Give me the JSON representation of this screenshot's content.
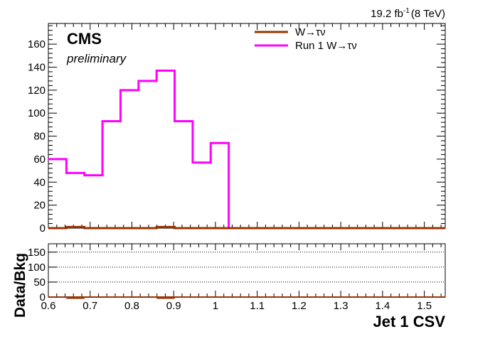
{
  "header": {
    "lumi_value": "19.2 fb",
    "lumi_exponent": "-1",
    "energy": "(8 TeV)"
  },
  "labels": {
    "experiment": "CMS",
    "status": "preliminary",
    "xlabel": "Jet 1 CSV",
    "ratio_ylabel": "Data/Bkg"
  },
  "colors": {
    "run1": "#ff00ff",
    "wtau": "#993300",
    "frame": "#000000",
    "grid": "#000000"
  },
  "chart_data": [
    {
      "type": "line",
      "panel": "main",
      "xlim": [
        0.6,
        1.55
      ],
      "ylim": [
        0,
        178
      ],
      "yticks": [
        0,
        20,
        40,
        60,
        80,
        100,
        120,
        140,
        160
      ],
      "xticks": [
        0.6,
        0.7,
        0.8,
        0.9,
        1,
        1.1,
        1.2,
        1.3,
        1.4,
        1.5
      ],
      "bin_edges": [
        0.6,
        0.6432,
        0.6864,
        0.7295,
        0.7727,
        0.8159,
        0.8591,
        0.9023,
        0.9455,
        0.9886,
        1.0318,
        1.075,
        1.1182,
        1.1614,
        1.2045,
        1.2477,
        1.2909,
        1.3341,
        1.3773,
        1.4205,
        1.4636,
        1.5068,
        1.55
      ],
      "legend_position": "top-right",
      "series": [
        {
          "name": "W→τν",
          "values": [
            0,
            1,
            0,
            0,
            0,
            0,
            1,
            0,
            0,
            0,
            0,
            0,
            0,
            0,
            0,
            0,
            0,
            0,
            0,
            0,
            0,
            0
          ]
        },
        {
          "name": "Run 1 W→τν",
          "values": [
            60,
            48,
            46,
            93,
            120,
            128,
            137,
            93,
            57,
            74,
            0,
            0,
            0,
            0,
            0,
            0,
            0,
            0,
            0,
            0,
            0,
            0
          ]
        }
      ]
    },
    {
      "type": "line",
      "panel": "ratio",
      "xlim": [
        0.6,
        1.55
      ],
      "ylim": [
        0,
        178
      ],
      "yticks": [
        0,
        50,
        100,
        150
      ],
      "grid_lines": [
        50,
        100,
        150
      ],
      "ylabel": "Data/Bkg",
      "xlabel": "Jet 1 CSV",
      "series": [
        {
          "values": [
            0,
            0,
            0,
            0,
            0,
            0,
            0,
            0,
            0,
            0,
            0,
            0,
            0,
            0,
            0,
            0,
            0,
            0,
            0,
            0,
            0,
            0
          ]
        }
      ]
    }
  ]
}
